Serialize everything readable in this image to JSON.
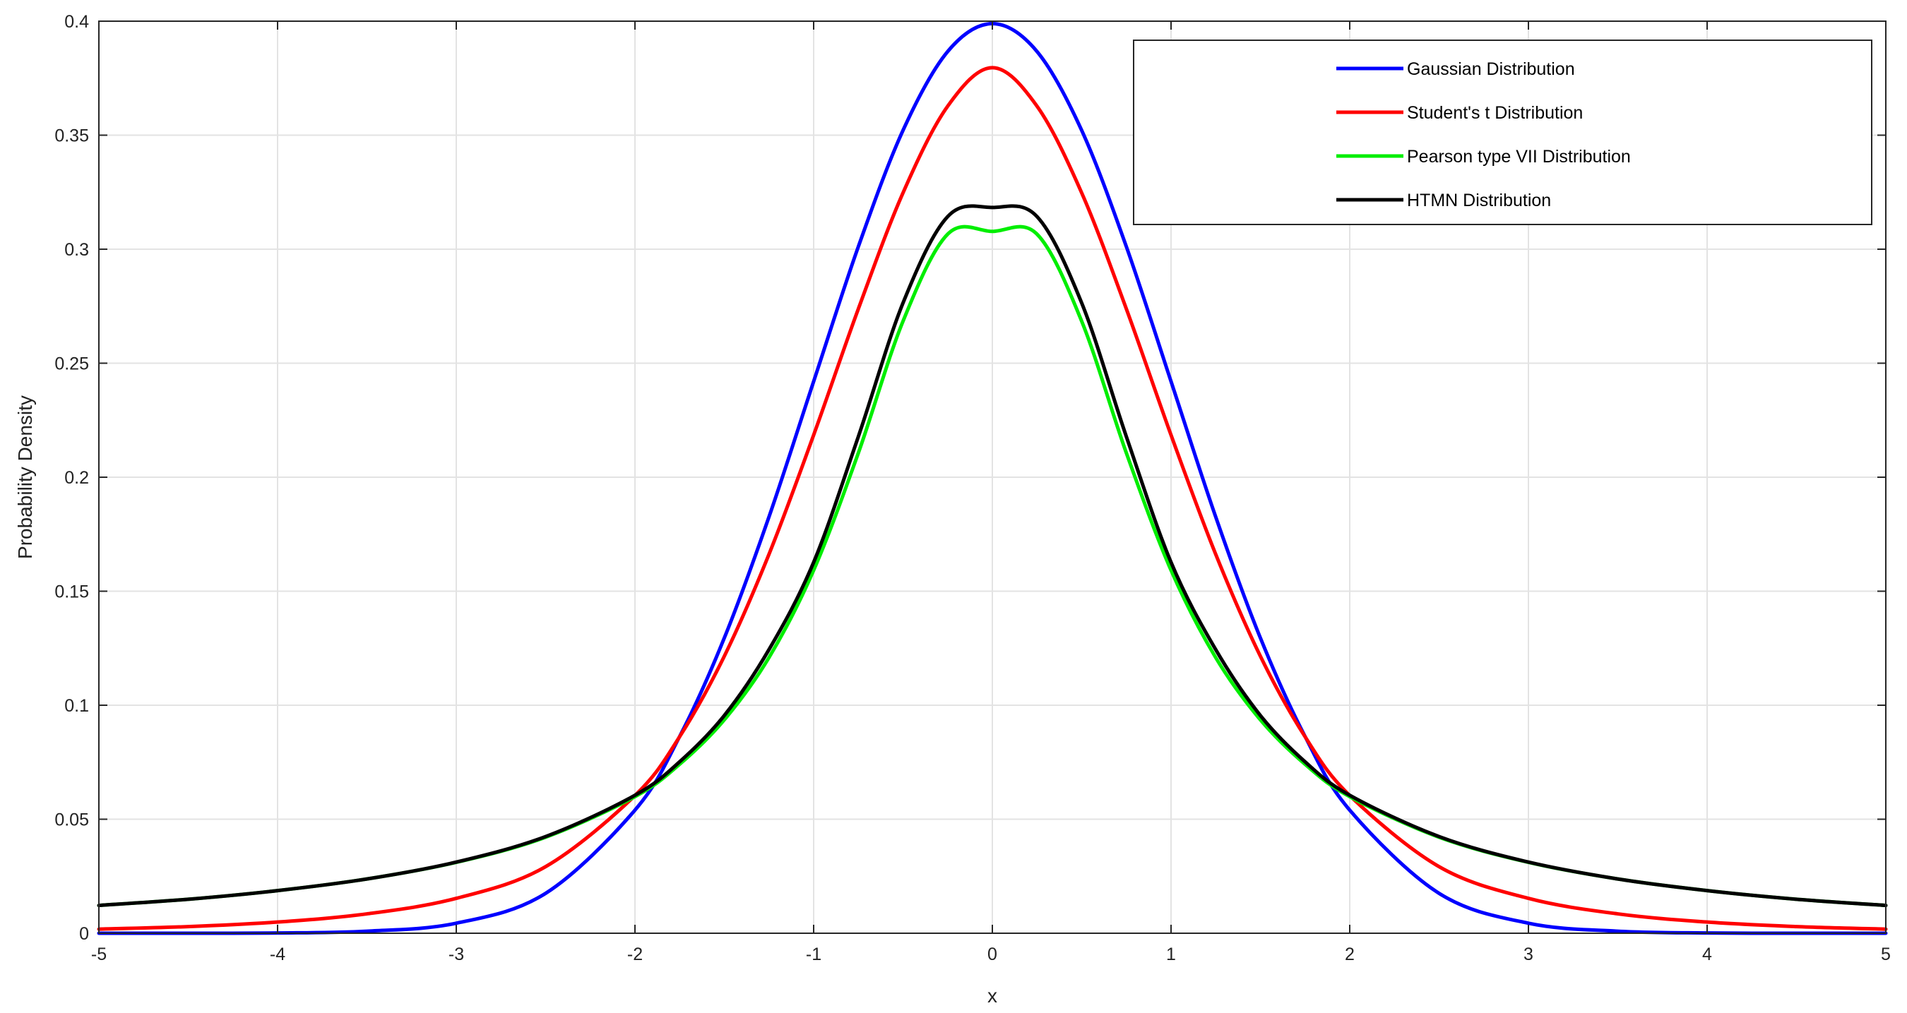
{
  "chart_data": {
    "type": "line",
    "title": "",
    "xlabel": "x",
    "ylabel": "Probability Density",
    "xlim": [
      -5,
      5
    ],
    "ylim": [
      0,
      0.4
    ],
    "xticks": [
      -5,
      -4,
      -3,
      -2,
      -1,
      0,
      1,
      2,
      3,
      4,
      5
    ],
    "xtick_labels": [
      "-5",
      "-4",
      "-3",
      "-2",
      "-1",
      "0",
      "1",
      "2",
      "3",
      "4",
      "5"
    ],
    "yticks": [
      0,
      0.05,
      0.1,
      0.15,
      0.2,
      0.25,
      0.3,
      0.35,
      0.4
    ],
    "ytick_labels": [
      "0",
      "0.05",
      "0.1",
      "0.15",
      "0.2",
      "0.25",
      "0.3",
      "0.35",
      "0.4"
    ],
    "grid": true,
    "legend_position": "top-right",
    "x": [
      -5,
      -4.5,
      -4,
      -3.5,
      -3,
      -2.5,
      -2,
      -1.75,
      -1.5,
      -1.25,
      -1,
      -0.75,
      -0.5,
      -0.25,
      0,
      0.25,
      0.5,
      0.75,
      1,
      1.25,
      1.5,
      1.75,
      2,
      2.5,
      3,
      3.5,
      4,
      4.5,
      5
    ],
    "series": [
      {
        "name": "Gaussian Distribution",
        "color": "#0000ff",
        "values": [
          0.0,
          0.0,
          0.0001,
          0.0009,
          0.0044,
          0.0175,
          0.054,
          0.0863,
          0.1295,
          0.1826,
          0.242,
          0.3011,
          0.3521,
          0.3867,
          0.3989,
          0.3867,
          0.3521,
          0.3011,
          0.242,
          0.1826,
          0.1295,
          0.0863,
          0.054,
          0.0175,
          0.0044,
          0.0009,
          0.0001,
          0.0,
          0.0
        ]
      },
      {
        "name": "Student's t Distribution",
        "color": "#ff0000",
        "values": [
          0.0018,
          0.0029,
          0.0049,
          0.0085,
          0.0153,
          0.0292,
          0.0604,
          0.0862,
          0.1215,
          0.1662,
          0.2185,
          0.2738,
          0.3247,
          0.3627,
          0.3796,
          0.3627,
          0.3247,
          0.2738,
          0.2185,
          0.1662,
          0.1215,
          0.0862,
          0.0604,
          0.0292,
          0.0153,
          0.0085,
          0.0049,
          0.0029,
          0.0018
        ]
      },
      {
        "name": "Pearson type VII Distribution",
        "color": "#00ee00",
        "values": [
          0.0122,
          0.0149,
          0.0187,
          0.0238,
          0.0311,
          0.0421,
          0.0599,
          0.0741,
          0.0936,
          0.1209,
          0.1592,
          0.2106,
          0.2684,
          0.3066,
          0.3078,
          0.3066,
          0.2684,
          0.2106,
          0.1592,
          0.1209,
          0.0936,
          0.0741,
          0.0599,
          0.0421,
          0.0311,
          0.0238,
          0.0187,
          0.0149,
          0.0122
        ]
      },
      {
        "name": "HTMN Distribution",
        "color": "#000000",
        "values": [
          0.0122,
          0.0149,
          0.0187,
          0.0238,
          0.0312,
          0.0424,
          0.0605,
          0.0752,
          0.0955,
          0.1244,
          0.1627,
          0.2178,
          0.2764,
          0.3143,
          0.3183,
          0.3143,
          0.2764,
          0.2178,
          0.1627,
          0.1244,
          0.0955,
          0.0752,
          0.0605,
          0.0424,
          0.0312,
          0.0238,
          0.0187,
          0.0149,
          0.0122
        ]
      }
    ]
  }
}
